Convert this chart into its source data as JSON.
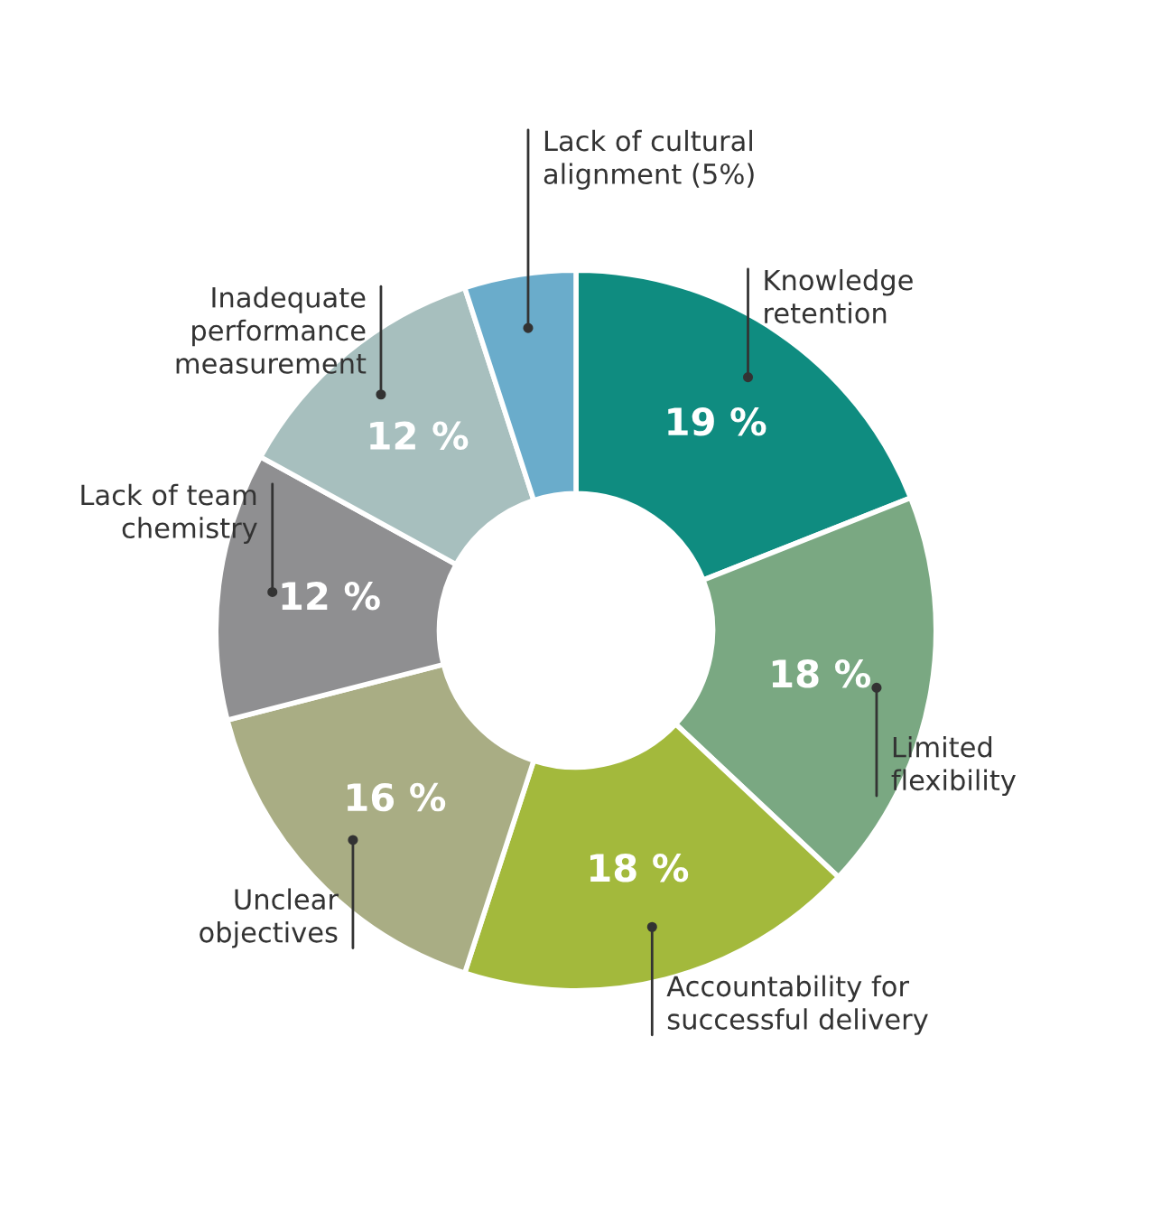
{
  "chart_data": {
    "type": "donut",
    "categories": [
      "Knowledge\nretention",
      "Limited\nflexibility",
      "Accountability for\nsuccessful delivery",
      "Unclear\nobjectives",
      "Lack of team\nchemistry",
      "Inadequate\nperformance\nmeasurement",
      "Lack of cultural\nalignment (5%)"
    ],
    "values": [
      19,
      18,
      18,
      16,
      12,
      12,
      5
    ],
    "colors": [
      "#0f8c80",
      "#7aa882",
      "#a3b93c",
      "#a9ad84",
      "#8f8f91",
      "#a7bfbe",
      "#6aaccb"
    ],
    "value_labels": [
      "19 %",
      "18 %",
      "18 %",
      "16 %",
      "12 %",
      "12 %",
      null
    ]
  }
}
